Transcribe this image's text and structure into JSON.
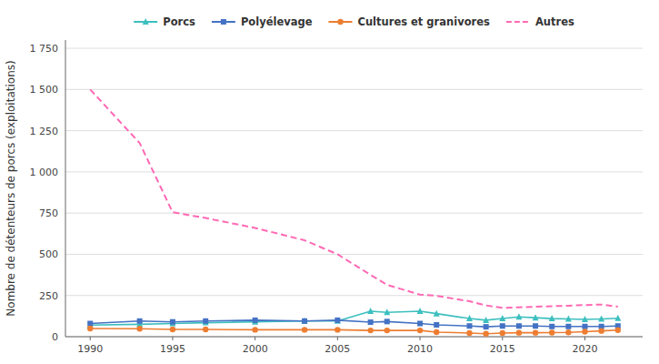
{
  "chart_data": {
    "type": "line",
    "ylabel": "Nombre de détenteurs de porcs (exploitations)",
    "x": [
      1990,
      1993,
      1995,
      1997,
      2000,
      2003,
      2005,
      2007,
      2008,
      2010,
      2011,
      2013,
      2014,
      2015,
      2016,
      2017,
      2018,
      2019,
      2020,
      2021,
      2022
    ],
    "xlim": [
      1988.5,
      2023.5
    ],
    "xticks": [
      1990,
      1995,
      2000,
      2005,
      2010,
      2015,
      2020
    ],
    "ylim": [
      0,
      1800
    ],
    "yticks": [
      0,
      250,
      500,
      750,
      {
        "value": 1000,
        "label": "1 000"
      },
      {
        "value": 1250,
        "label": "1 250"
      },
      {
        "value": 1500,
        "label": "1 500"
      },
      {
        "value": 1750,
        "label": "1 750"
      }
    ],
    "grid": "y",
    "legend": "top",
    "series": [
      {
        "name": "Porcs",
        "color": "#3DBFBF",
        "marker": "triangle",
        "line_style": "solid",
        "values": [
          70,
          75,
          80,
          85,
          90,
          95,
          95,
          155,
          148,
          155,
          140,
          110,
          100,
          110,
          120,
          115,
          110,
          108,
          105,
          108,
          112
        ]
      },
      {
        "name": "Polyélevage",
        "color": "#4472C4",
        "marker": "square",
        "line_style": "solid",
        "values": [
          80,
          95,
          90,
          95,
          100,
          95,
          100,
          88,
          92,
          80,
          72,
          65,
          60,
          65,
          65,
          65,
          62,
          62,
          62,
          62,
          65
        ]
      },
      {
        "name": "Cultures et granivores",
        "color": "#ED7D31",
        "marker": "circle",
        "line_style": "solid",
        "values": [
          50,
          48,
          44,
          44,
          42,
          42,
          42,
          38,
          38,
          38,
          28,
          22,
          18,
          22,
          24,
          24,
          25,
          26,
          30,
          35,
          40
        ]
      },
      {
        "name": "Autres",
        "color": "#FF69B4",
        "marker": "none",
        "line_style": "dashed",
        "values": [
          1500,
          1175,
          755,
          720,
          660,
          585,
          500,
          375,
          315,
          255,
          248,
          215,
          190,
          175,
          178,
          182,
          185,
          188,
          192,
          195,
          182
        ]
      }
    ]
  }
}
